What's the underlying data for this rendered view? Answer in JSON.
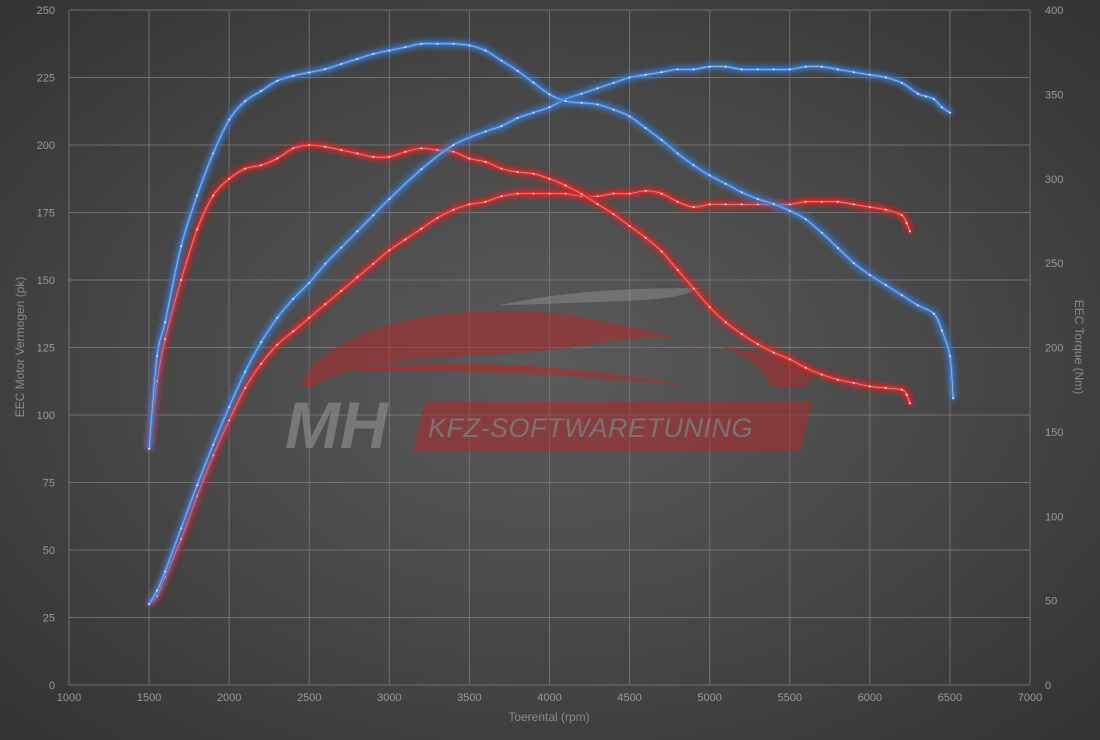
{
  "watermark": {
    "brand": "MH",
    "tagline": "KFZ-SOFTWARETUNING"
  },
  "chart_data": {
    "type": "line",
    "title": "",
    "xlabel": "Toerental (rpm)",
    "ylabel_left": "EEC Motor Vermogen (pk)",
    "ylabel_right": "EEC Torque (Nm)",
    "xlim": [
      1000,
      7000
    ],
    "ylim_left": [
      0,
      250
    ],
    "ylim_right": [
      0,
      400
    ],
    "x_ticks": [
      1000,
      1500,
      2000,
      2500,
      3000,
      3500,
      4000,
      4500,
      5000,
      5500,
      6000,
      6500,
      7000
    ],
    "y_ticks_left": [
      0,
      25,
      50,
      75,
      100,
      125,
      150,
      175,
      200,
      225,
      250
    ],
    "y_ticks_right": [
      0,
      50,
      100,
      150,
      200,
      250,
      300,
      350,
      400
    ],
    "grid": true,
    "colors": {
      "tuned": "#3d7fd6",
      "stock": "#e02a2a",
      "background": "#4a4a4a"
    },
    "series": [
      {
        "kind": "power",
        "axis": "left",
        "color": "#3d7fd6",
        "x": [
          1500,
          1550,
          1600,
          1700,
          1800,
          1900,
          2000,
          2100,
          2200,
          2300,
          2400,
          2500,
          2600,
          2700,
          2800,
          2900,
          3000,
          3200,
          3400,
          3600,
          3700,
          3800,
          3900,
          4000,
          4100,
          4200,
          4300,
          4400,
          4500,
          4600,
          4700,
          4800,
          4900,
          5000,
          5100,
          5200,
          5300,
          5400,
          5500,
          5600,
          5700,
          5800,
          5900,
          6000,
          6100,
          6200,
          6300,
          6350,
          6400,
          6450,
          6500
        ],
        "y": [
          30,
          35,
          42,
          58,
          74,
          89,
          103,
          116,
          127,
          136,
          143,
          149,
          156,
          162,
          168,
          174,
          180,
          191,
          200,
          205,
          207,
          210,
          212,
          214,
          217,
          219,
          221,
          223,
          225,
          226,
          227,
          228,
          228,
          229,
          229,
          228,
          228,
          228,
          228,
          229,
          229,
          228,
          227,
          226,
          225,
          223,
          219,
          218,
          217,
          214,
          212
        ]
      },
      {
        "kind": "torque",
        "axis": "right",
        "color": "#3d7fd6",
        "x": [
          1500,
          1550,
          1600,
          1700,
          1800,
          1900,
          2000,
          2100,
          2200,
          2300,
          2400,
          2500,
          2600,
          2700,
          2800,
          2900,
          3000,
          3100,
          3200,
          3300,
          3400,
          3500,
          3600,
          3700,
          3800,
          3900,
          4000,
          4100,
          4200,
          4300,
          4400,
          4500,
          4600,
          4700,
          4800,
          4900,
          5000,
          5100,
          5200,
          5300,
          5400,
          5500,
          5600,
          5700,
          5800,
          5900,
          6000,
          6100,
          6200,
          6300,
          6400,
          6450,
          6500,
          6520
        ],
        "y": [
          140,
          195,
          215,
          260,
          290,
          315,
          335,
          346,
          352,
          358,
          361,
          363,
          365,
          368,
          371,
          374,
          376,
          378,
          380,
          380,
          380,
          379,
          376,
          370,
          364,
          357,
          350,
          346,
          345,
          344,
          341,
          337,
          330,
          323,
          315,
          308,
          302,
          297,
          292,
          288,
          285,
          281,
          276,
          268,
          259,
          250,
          243,
          237,
          231,
          225,
          220,
          210,
          195,
          170
        ]
      },
      {
        "kind": "power",
        "axis": "left",
        "color": "#e02a2a",
        "x": [
          1500,
          1550,
          1600,
          1700,
          1800,
          1900,
          2000,
          2100,
          2200,
          2300,
          2400,
          2500,
          2600,
          2700,
          2800,
          2900,
          3000,
          3100,
          3200,
          3300,
          3400,
          3500,
          3600,
          3700,
          3800,
          3900,
          4000,
          4100,
          4200,
          4300,
          4400,
          4500,
          4600,
          4700,
          4800,
          4900,
          5000,
          5100,
          5200,
          5300,
          5400,
          5500,
          5600,
          5700,
          5800,
          5900,
          6000,
          6100,
          6200,
          6230,
          6250
        ],
        "y": [
          30,
          33,
          40,
          54,
          70,
          85,
          98,
          110,
          119,
          126,
          131,
          136,
          141,
          146,
          151,
          156,
          161,
          165,
          169,
          173,
          176,
          178,
          179,
          181,
          182,
          182,
          182,
          182,
          181,
          181,
          182,
          182,
          183,
          182,
          179,
          177,
          178,
          178,
          178,
          178,
          178,
          178,
          179,
          179,
          179,
          178,
          177,
          176,
          174,
          171,
          168
        ]
      },
      {
        "kind": "torque",
        "axis": "right",
        "color": "#e02a2a",
        "x": [
          1500,
          1550,
          1600,
          1700,
          1800,
          1900,
          2000,
          2100,
          2200,
          2300,
          2400,
          2500,
          2600,
          2700,
          2800,
          2900,
          3000,
          3100,
          3200,
          3300,
          3400,
          3500,
          3600,
          3700,
          3800,
          3900,
          4000,
          4100,
          4200,
          4300,
          4400,
          4500,
          4600,
          4700,
          4800,
          4900,
          5000,
          5100,
          5200,
          5300,
          5400,
          5500,
          5600,
          5700,
          5800,
          5900,
          6000,
          6100,
          6200,
          6230,
          6250
        ],
        "y": [
          140,
          180,
          205,
          240,
          270,
          290,
          300,
          306,
          308,
          312,
          318,
          320,
          319,
          317,
          315,
          313,
          313,
          316,
          318,
          317,
          316,
          312,
          310,
          306,
          304,
          303,
          300,
          296,
          291,
          285,
          279,
          272,
          265,
          257,
          246,
          235,
          224,
          215,
          208,
          202,
          197,
          193,
          188,
          184,
          181,
          179,
          177,
          176,
          175,
          172,
          167
        ]
      }
    ]
  }
}
